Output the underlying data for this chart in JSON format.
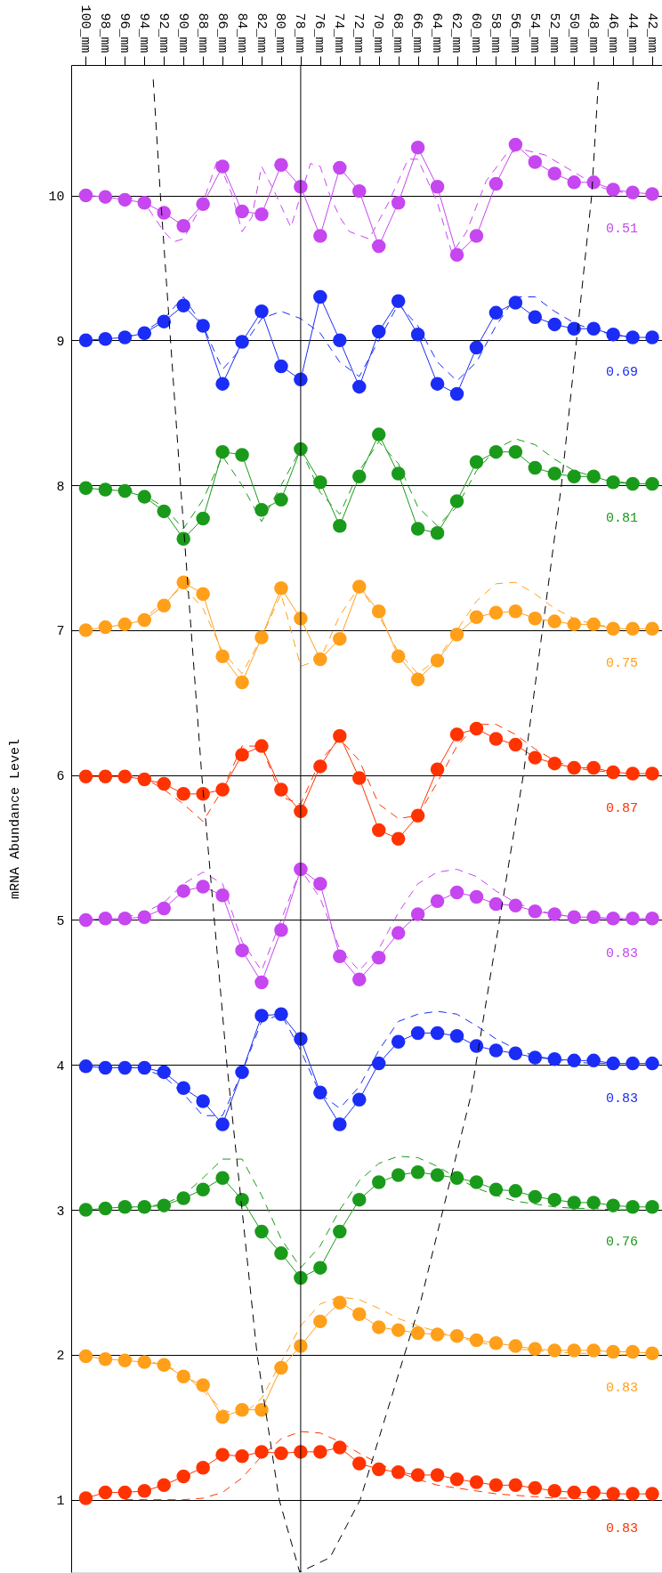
{
  "chart_data": {
    "type": "line",
    "ylabel": "mRNA Abundance Level",
    "marker": "circle",
    "line_style": "solid",
    "grid": "y",
    "x": [
      100,
      98,
      96,
      94,
      92,
      90,
      88,
      86,
      84,
      82,
      80,
      78,
      76,
      74,
      72,
      70,
      68,
      66,
      64,
      62,
      60,
      58,
      56,
      54,
      52,
      50,
      48,
      46,
      44,
      42
    ],
    "xlim": [
      101.5,
      41
    ],
    "ylim": [
      0.5,
      10.9
    ],
    "yticks": [
      1,
      2,
      3,
      4,
      5,
      6,
      7,
      8,
      9,
      10
    ],
    "xticks": [
      {
        "value": 100,
        "label": "100_mm"
      },
      {
        "value": 98,
        "label": "98_mm"
      },
      {
        "value": 96,
        "label": "96_mm"
      },
      {
        "value": 94,
        "label": "94_mm"
      },
      {
        "value": 92,
        "label": "92_mm"
      },
      {
        "value": 90,
        "label": "90_mm"
      },
      {
        "value": 88,
        "label": "88_mm"
      },
      {
        "value": 86,
        "label": "86_mm"
      },
      {
        "value": 84,
        "label": "84_mm"
      },
      {
        "value": 82,
        "label": "82_mm"
      },
      {
        "value": 80,
        "label": "80_mm"
      },
      {
        "value": 78,
        "label": "78_mm"
      },
      {
        "value": 76,
        "label": "76_mm"
      },
      {
        "value": 74,
        "label": "74_mm"
      },
      {
        "value": 72,
        "label": "72_mm"
      },
      {
        "value": 70,
        "label": "70_mm"
      },
      {
        "value": 68,
        "label": "68_mm"
      },
      {
        "value": 66,
        "label": "66_mm"
      },
      {
        "value": 64,
        "label": "64_mm"
      },
      {
        "value": 62,
        "label": "62_mm"
      },
      {
        "value": 60,
        "label": "60_mm"
      },
      {
        "value": 58,
        "label": "58_mm"
      },
      {
        "value": 56,
        "label": "56_mm"
      },
      {
        "value": 54,
        "label": "54_mm"
      },
      {
        "value": 52,
        "label": "52_mm"
      },
      {
        "value": 50,
        "label": "50_mm"
      },
      {
        "value": 48,
        "label": "48_mm"
      },
      {
        "value": 46,
        "label": "46_mm"
      },
      {
        "value": 44,
        "label": "44_mm"
      },
      {
        "value": 42,
        "label": "42_mm"
      }
    ],
    "series": [
      {
        "color": "#ff3300",
        "values": [
          1.01,
          1.05,
          1.05,
          1.06,
          1.1,
          1.16,
          1.22,
          1.31,
          1.3,
          1.33,
          1.32,
          1.33,
          1.33,
          1.36,
          1.25,
          1.21,
          1.19,
          1.17,
          1.17,
          1.14,
          1.12,
          1.1,
          1.1,
          1.08,
          1.06,
          1.05,
          1.05,
          1.04,
          1.04,
          1.04
        ]
      },
      {
        "color": "#ff9f1a",
        "values": [
          1.99,
          1.97,
          1.96,
          1.95,
          1.93,
          1.85,
          1.79,
          1.57,
          1.62,
          1.62,
          1.91,
          2.06,
          2.23,
          2.36,
          2.28,
          2.19,
          2.17,
          2.15,
          2.14,
          2.13,
          2.1,
          2.08,
          2.06,
          2.04,
          2.03,
          2.03,
          2.03,
          2.02,
          2.02,
          2.01
        ]
      },
      {
        "color": "#1a9a1a",
        "values": [
          3.0,
          3.01,
          3.02,
          3.02,
          3.03,
          3.08,
          3.14,
          3.22,
          3.07,
          2.85,
          2.7,
          2.53,
          2.6,
          2.85,
          3.07,
          3.19,
          3.24,
          3.26,
          3.24,
          3.22,
          3.19,
          3.14,
          3.13,
          3.09,
          3.07,
          3.05,
          3.05,
          3.03,
          3.02,
          3.02
        ]
      },
      {
        "color": "#1a2cf5",
        "values": [
          3.99,
          3.98,
          3.98,
          3.98,
          3.95,
          3.84,
          3.75,
          3.59,
          3.95,
          4.34,
          4.35,
          4.18,
          3.81,
          3.59,
          3.76,
          4.01,
          4.16,
          4.22,
          4.22,
          4.2,
          4.13,
          4.1,
          4.08,
          4.05,
          4.04,
          4.03,
          4.03,
          4.01,
          4.01,
          4.01
        ]
      },
      {
        "color": "#c646f0",
        "values": [
          5.0,
          5.01,
          5.01,
          5.02,
          5.08,
          5.2,
          5.23,
          5.17,
          4.79,
          4.57,
          4.93,
          5.35,
          5.25,
          4.75,
          4.59,
          4.74,
          4.91,
          5.04,
          5.13,
          5.19,
          5.16,
          5.11,
          5.1,
          5.06,
          5.04,
          5.02,
          5.02,
          5.01,
          5.01,
          5.01
        ]
      },
      {
        "color": "#ff3300",
        "values": [
          5.99,
          5.99,
          5.99,
          5.97,
          5.94,
          5.87,
          5.87,
          5.9,
          6.14,
          6.2,
          5.9,
          5.75,
          6.06,
          6.27,
          5.98,
          5.62,
          5.56,
          5.72,
          6.04,
          6.28,
          6.32,
          6.25,
          6.21,
          6.12,
          6.08,
          6.05,
          6.05,
          6.02,
          6.01,
          6.01
        ]
      },
      {
        "color": "#ff9f1a",
        "values": [
          7.0,
          7.02,
          7.04,
          7.07,
          7.17,
          7.33,
          7.25,
          6.82,
          6.64,
          6.95,
          7.29,
          7.08,
          6.8,
          6.94,
          7.3,
          7.13,
          6.82,
          6.66,
          6.79,
          6.97,
          7.09,
          7.12,
          7.13,
          7.08,
          7.06,
          7.04,
          7.04,
          7.01,
          7.01,
          7.01
        ]
      },
      {
        "color": "#1a9a1a",
        "values": [
          7.98,
          7.97,
          7.96,
          7.92,
          7.82,
          7.63,
          7.77,
          8.23,
          8.21,
          7.83,
          7.9,
          8.25,
          8.02,
          7.72,
          8.06,
          8.35,
          8.08,
          7.7,
          7.67,
          7.89,
          8.16,
          8.23,
          8.23,
          8.12,
          8.08,
          8.06,
          8.06,
          8.02,
          8.01,
          8.01
        ]
      },
      {
        "color": "#1a2cf5",
        "values": [
          9.0,
          9.01,
          9.02,
          9.05,
          9.13,
          9.24,
          9.1,
          8.7,
          8.99,
          9.2,
          8.82,
          8.73,
          9.3,
          9.0,
          8.68,
          9.06,
          9.27,
          9.04,
          8.7,
          8.63,
          8.95,
          9.19,
          9.26,
          9.16,
          9.11,
          9.08,
          9.08,
          9.04,
          9.02,
          9.02
        ]
      },
      {
        "color": "#c646f0",
        "values": [
          10.0,
          9.99,
          9.97,
          9.95,
          9.88,
          9.79,
          9.94,
          10.2,
          9.89,
          9.87,
          10.21,
          10.06,
          9.72,
          10.19,
          10.03,
          9.65,
          9.95,
          10.33,
          10.06,
          9.59,
          9.72,
          10.08,
          10.35,
          10.23,
          10.15,
          10.09,
          10.09,
          10.04,
          10.02,
          10.01
        ]
      },
      {
        "color": "#ff3300",
        "type": "line",
        "marker": "none",
        "line_style": "dashed",
        "x": [
          96,
          94,
          92,
          90,
          88,
          86,
          84,
          82,
          80,
          78,
          76,
          74,
          72,
          70,
          68,
          66,
          64,
          62,
          60,
          58,
          56,
          54,
          52,
          50,
          48,
          46,
          44
        ],
        "values": [
          1.0,
          1.0,
          1.0,
          1.0,
          1.01,
          1.05,
          1.15,
          1.3,
          1.42,
          1.47,
          1.46,
          1.4,
          1.32,
          1.25,
          1.19,
          1.14,
          1.1,
          1.08,
          1.06,
          1.04,
          1.03,
          1.02,
          1.01,
          1.01,
          1.0,
          1.0,
          1.0
        ]
      },
      {
        "color": "#ff9f1a",
        "type": "line",
        "marker": "none",
        "line_style": "dashed",
        "x": [
          96,
          94,
          92,
          90,
          88,
          86,
          84,
          82,
          80,
          78,
          76,
          74,
          72,
          70,
          68,
          66,
          64,
          62,
          60,
          58,
          56,
          54,
          52,
          50,
          48,
          46,
          44
        ],
        "values": [
          1.98,
          1.96,
          1.93,
          1.87,
          1.75,
          1.62,
          1.58,
          1.7,
          1.95,
          2.2,
          2.35,
          2.4,
          2.38,
          2.32,
          2.25,
          2.2,
          2.16,
          2.12,
          2.09,
          2.06,
          2.04,
          2.03,
          2.02,
          2.01,
          2.01,
          2.0,
          2.0
        ]
      },
      {
        "color": "#1a9a1a",
        "type": "line",
        "marker": "none",
        "line_style": "dashed",
        "x": [
          96,
          94,
          92,
          90,
          88,
          86,
          84,
          82,
          80,
          78,
          76,
          74,
          72,
          70,
          68,
          66,
          64,
          62,
          60,
          58,
          56,
          54,
          52,
          50,
          48,
          46,
          44
        ],
        "values": [
          3.01,
          3.02,
          3.04,
          3.1,
          3.22,
          3.35,
          3.35,
          3.1,
          2.8,
          2.6,
          2.75,
          3.0,
          3.2,
          3.32,
          3.37,
          3.36,
          3.3,
          3.22,
          3.15,
          3.1,
          3.06,
          3.04,
          3.02,
          3.01,
          3.01,
          3.0,
          3.0
        ]
      },
      {
        "color": "#1a2cf5",
        "type": "line",
        "marker": "none",
        "line_style": "dashed",
        "x": [
          96,
          94,
          92,
          90,
          88,
          86,
          84,
          82,
          80,
          78,
          76,
          74,
          72,
          70,
          68,
          66,
          64,
          62,
          60,
          58,
          56,
          54,
          52,
          50,
          48,
          46,
          44
        ],
        "values": [
          3.99,
          3.97,
          3.92,
          3.8,
          3.65,
          3.65,
          3.95,
          4.3,
          4.35,
          4.1,
          3.8,
          3.7,
          3.85,
          4.1,
          4.3,
          4.35,
          4.37,
          4.35,
          4.27,
          4.18,
          4.11,
          4.06,
          4.04,
          4.02,
          4.01,
          4.01,
          4.0
        ]
      },
      {
        "color": "#c646f0",
        "type": "line",
        "marker": "none",
        "line_style": "dashed",
        "x": [
          96,
          94,
          92,
          90,
          88,
          86,
          84,
          82,
          80,
          78,
          76,
          74,
          72,
          70,
          68,
          66,
          64,
          62,
          60,
          58,
          56,
          54,
          52,
          50,
          48,
          46,
          44
        ],
        "values": [
          5.02,
          5.05,
          5.12,
          5.25,
          5.33,
          5.25,
          4.85,
          4.65,
          5.0,
          5.35,
          5.15,
          4.8,
          4.65,
          4.8,
          5.05,
          5.25,
          5.33,
          5.35,
          5.3,
          5.2,
          5.12,
          5.07,
          5.04,
          5.02,
          5.01,
          5.01,
          5.0
        ]
      },
      {
        "color": "#ff3300",
        "type": "line",
        "marker": "none",
        "line_style": "dashed",
        "x": [
          96,
          94,
          92,
          90,
          88,
          86,
          84,
          82,
          80,
          78,
          76,
          74,
          72,
          70,
          68,
          66,
          64,
          62,
          60,
          58,
          56,
          54,
          52,
          50,
          48,
          46,
          44
        ],
        "values": [
          6.0,
          5.98,
          5.9,
          5.8,
          5.68,
          5.9,
          6.2,
          6.2,
          5.85,
          5.8,
          6.1,
          6.25,
          6.1,
          5.8,
          5.7,
          5.72,
          5.95,
          6.2,
          6.35,
          6.35,
          6.28,
          6.18,
          6.1,
          6.05,
          6.03,
          6.02,
          6.01
        ]
      },
      {
        "color": "#ff9f1a",
        "type": "line",
        "marker": "none",
        "line_style": "dashed",
        "x": [
          96,
          94,
          92,
          90,
          88,
          86,
          84,
          82,
          80,
          78,
          76,
          74,
          72,
          70,
          68,
          66,
          64,
          62,
          60,
          58,
          56,
          54,
          52,
          50,
          48,
          46,
          44
        ],
        "values": [
          7.03,
          7.08,
          7.2,
          7.3,
          7.15,
          6.85,
          6.7,
          6.95,
          7.25,
          6.75,
          6.8,
          7.1,
          7.3,
          7.1,
          6.85,
          6.7,
          6.8,
          7.0,
          7.2,
          7.32,
          7.33,
          7.25,
          7.15,
          7.08,
          7.04,
          7.02,
          7.01
        ]
      },
      {
        "color": "#1a9a1a",
        "type": "line",
        "marker": "none",
        "line_style": "dashed",
        "x": [
          96,
          94,
          92,
          90,
          88,
          86,
          84,
          82,
          80,
          78,
          76,
          74,
          72,
          70,
          68,
          66,
          64,
          62,
          60,
          58,
          56,
          54,
          52,
          50,
          48,
          46,
          44
        ],
        "values": [
          7.97,
          7.93,
          7.85,
          7.7,
          7.9,
          8.2,
          8.0,
          7.75,
          8.0,
          8.25,
          7.95,
          7.8,
          8.1,
          8.3,
          8.15,
          7.85,
          7.72,
          7.85,
          8.1,
          8.25,
          8.32,
          8.28,
          8.18,
          8.1,
          8.06,
          8.03,
          8.01
        ]
      },
      {
        "color": "#1a2cf5",
        "type": "line",
        "marker": "none",
        "line_style": "dashed",
        "x": [
          96,
          94,
          92,
          90,
          88,
          86,
          84,
          82,
          80,
          78,
          76,
          74,
          72,
          70,
          68,
          66,
          64,
          62,
          60,
          58,
          56,
          54,
          52,
          50,
          48,
          46,
          44
        ],
        "values": [
          9.02,
          9.06,
          9.15,
          9.3,
          9.1,
          8.8,
          8.95,
          9.15,
          9.2,
          9.15,
          9.05,
          8.85,
          8.75,
          9.0,
          9.25,
          9.1,
          8.85,
          8.72,
          8.85,
          9.1,
          9.3,
          9.3,
          9.2,
          9.12,
          9.07,
          9.04,
          9.02
        ]
      },
      {
        "color": "#c646f0",
        "type": "line",
        "marker": "none",
        "line_style": "dashed",
        "x": [
          96,
          94,
          92,
          91,
          90,
          88,
          86.5,
          85,
          84,
          83,
          82,
          80.5,
          79,
          78,
          77,
          76,
          75,
          74,
          73,
          71,
          69,
          67,
          66,
          64,
          62.5,
          61,
          59,
          57,
          55.5,
          53,
          51,
          49,
          47,
          45
        ],
        "values": [
          10.0,
          9.95,
          9.75,
          9.68,
          9.7,
          9.95,
          10.25,
          10.0,
          9.75,
          9.85,
          10.2,
          10.0,
          9.78,
          10.0,
          10.22,
          10.2,
          10.0,
          9.85,
          9.75,
          9.7,
          9.95,
          10.25,
          10.25,
          9.95,
          9.6,
          9.75,
          10.1,
          10.28,
          10.32,
          10.28,
          10.2,
          10.12,
          10.05,
          10.02
        ]
      },
      {
        "color": "#000000",
        "type": "line",
        "marker": "none",
        "line_style": "dashed",
        "x": [
          93.1,
          92.36,
          90.3,
          88.13,
          85.55,
          82.46,
          80.2,
          78.1,
          75.0,
          71.9,
          65.7,
          60.6,
          55.2,
          51.3,
          48.2,
          47.5
        ],
        "values": [
          10.8,
          10.0,
          8.0,
          6.0,
          4.0,
          2.0,
          1.0,
          0.5,
          0.6,
          1.0,
          2.37,
          3.78,
          6.0,
          8.0,
          10.0,
          10.8
        ]
      }
    ],
    "ref_lines": [
      {
        "axis": "x",
        "value": 78
      }
    ],
    "annotations": [
      "0.83",
      "0.83",
      "0.76",
      "0.83",
      "0.83",
      "0.87",
      "0.75",
      "0.81",
      "0.69",
      "0.51"
    ]
  }
}
